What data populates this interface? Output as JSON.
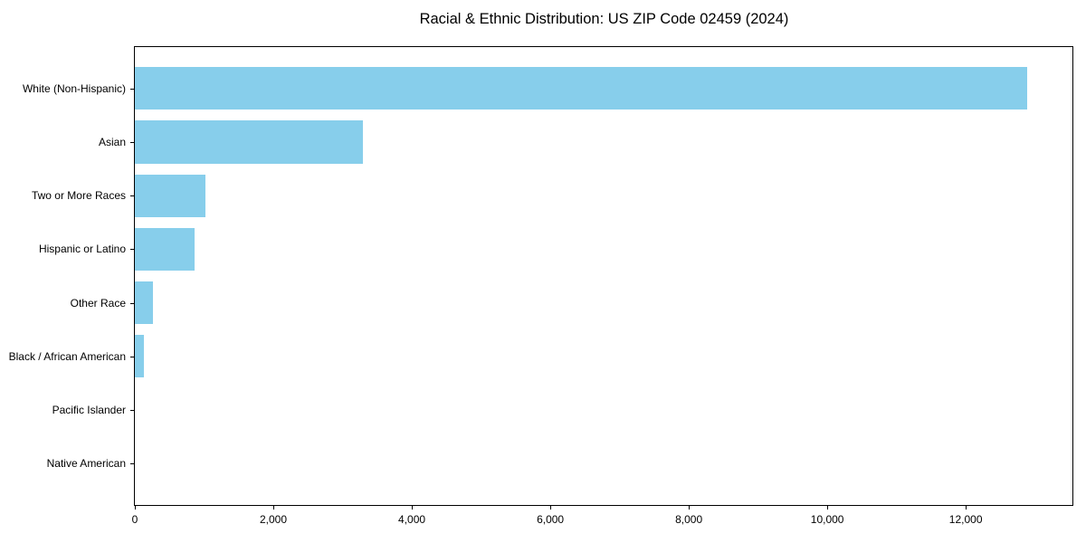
{
  "chart_data": {
    "type": "bar",
    "orientation": "horizontal",
    "title": "Racial & Ethnic Distribution: US ZIP Code 02459 (2024)",
    "categories": [
      "White (Non-Hispanic)",
      "Asian",
      "Two or More Races",
      "Hispanic or Latino",
      "Other Race",
      "Black / African American",
      "Pacific Islander",
      "Native American"
    ],
    "values": [
      12880,
      3300,
      1020,
      860,
      265,
      130,
      0,
      0
    ],
    "xlabel": "",
    "ylabel": "",
    "xlim": [
      0,
      13540
    ],
    "xticks": {
      "values": [
        0,
        2000,
        4000,
        6000,
        8000,
        10000,
        12000
      ],
      "labels": [
        "0",
        "2,000",
        "4,000",
        "6,000",
        "8,000",
        "10,000",
        "12,000"
      ]
    },
    "bar_color": "#87CEEB",
    "text_color": "#000000",
    "spine_color": "#000000",
    "background": "#FFFFFF",
    "grid": false,
    "legend": null
  }
}
